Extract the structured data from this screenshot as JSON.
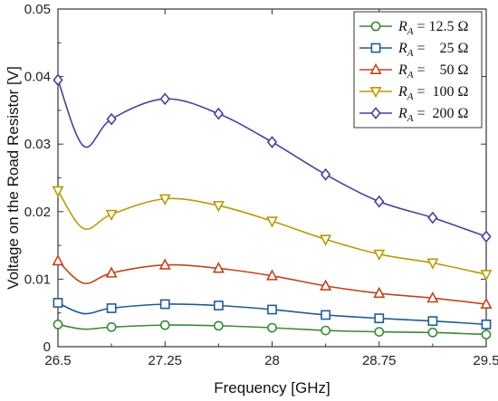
{
  "chart_data": {
    "type": "line",
    "xlabel": "Frequency [GHz]",
    "ylabel": "Voltage on the Road Resistor [V]",
    "xlim": [
      26.5,
      29.5
    ],
    "ylim": [
      0,
      0.05
    ],
    "xticks": [
      26.5,
      27.25,
      28,
      28.75,
      29.5
    ],
    "xtick_labels": [
      "26.5",
      "27.25",
      "28",
      "28.75",
      "29.5"
    ],
    "yticks": [
      0,
      0.01,
      0.02,
      0.03,
      0.04,
      0.05
    ],
    "ytick_labels": [
      "0",
      "0.01",
      "0.02",
      "0.03",
      "0.04",
      "0.05"
    ],
    "grid": false,
    "legend_position": "top-right",
    "x": [
      26.5,
      26.875,
      27.25,
      27.625,
      28,
      28.375,
      28.75,
      29.125,
      29.5
    ],
    "series": [
      {
        "name": "R_A = 12.5 Ω",
        "legend_sub": "A",
        "legend_value": "= 12.5 Ω",
        "marker": "circle",
        "color": "#3a8a3a",
        "values": [
          0.0033,
          0.0029,
          0.0032,
          0.0031,
          0.0028,
          0.0024,
          0.0022,
          0.0021,
          0.0018
        ]
      },
      {
        "name": "R_A = 25 Ω",
        "legend_sub": "A",
        "legend_value": "=    25 Ω",
        "marker": "square",
        "color": "#1f5c99",
        "values": [
          0.0065,
          0.0057,
          0.0063,
          0.0061,
          0.0055,
          0.0047,
          0.0042,
          0.0038,
          0.0033
        ]
      },
      {
        "name": "R_A = 50 Ω",
        "legend_sub": "A",
        "legend_value": "=    50 Ω",
        "marker": "triangle-up",
        "color": "#c0451c",
        "values": [
          0.0127,
          0.0109,
          0.0121,
          0.0116,
          0.0105,
          0.009,
          0.0079,
          0.0072,
          0.0063
        ]
      },
      {
        "name": "R_A = 100 Ω",
        "legend_sub": "A",
        "legend_value": "=  100 Ω",
        "marker": "triangle-down",
        "color": "#b89a08",
        "values": [
          0.0231,
          0.0196,
          0.0219,
          0.0209,
          0.0186,
          0.0159,
          0.0137,
          0.0124,
          0.0107
        ]
      },
      {
        "name": "R_A = 200 Ω",
        "legend_sub": "A",
        "legend_value": "=  200 Ω",
        "marker": "diamond",
        "color": "#4b3f9c",
        "values": [
          0.0395,
          0.0337,
          0.0367,
          0.0345,
          0.0303,
          0.0255,
          0.0215,
          0.0191,
          0.0163
        ]
      }
    ],
    "curve_dips": [
      {
        "series": 0,
        "x": 26.68,
        "y": 0.0026
      },
      {
        "series": 1,
        "x": 26.68,
        "y": 0.0049
      },
      {
        "series": 2,
        "x": 26.68,
        "y": 0.0094
      },
      {
        "series": 3,
        "x": 26.68,
        "y": 0.0175
      },
      {
        "series": 4,
        "x": 26.68,
        "y": 0.0297
      }
    ]
  }
}
